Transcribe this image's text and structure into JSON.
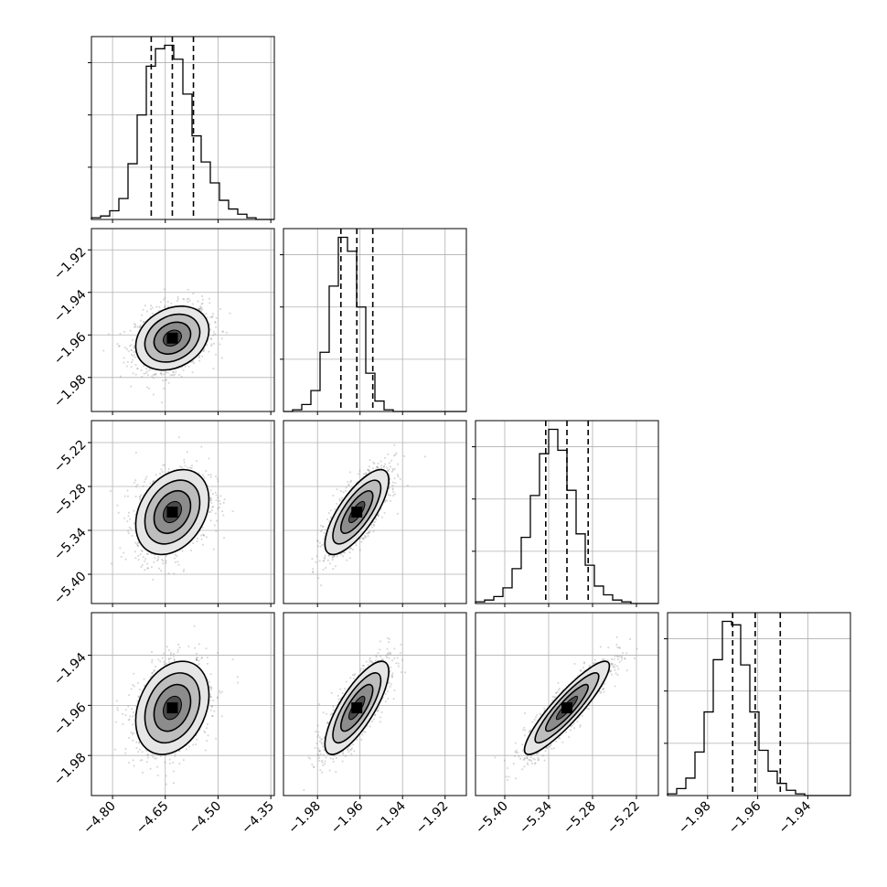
{
  "chart_data": {
    "type": "corner",
    "grid": true,
    "colors": {
      "line": "#000000",
      "grid": "#b0b0b0",
      "scatter": "#8a8a8a",
      "background": "#ffffff"
    },
    "parameters": [
      {
        "xlim": [
          -4.86,
          -4.34
        ],
        "ticks": [
          "-4.80",
          "-4.65",
          "-4.50",
          "-4.35"
        ],
        "tick_values": [
          -4.8,
          -4.65,
          -4.5,
          -4.35
        ],
        "median": -4.63,
        "q16": -4.69,
        "q84": -4.57,
        "std": 0.052
      },
      {
        "xlim": [
          -1.996,
          -1.91
        ],
        "ticks": [
          "-1.98",
          "-1.96",
          "-1.94",
          "-1.92"
        ],
        "tick_values": [
          -1.98,
          -1.96,
          -1.94,
          -1.92
        ],
        "median": -1.9615,
        "q16": -1.969,
        "q84": -1.954,
        "std": 0.0075
      },
      {
        "xlim": [
          -5.44,
          -5.19
        ],
        "ticks": [
          "-5.40",
          "-5.34",
          "-5.28",
          "-5.22"
        ],
        "tick_values": [
          -5.4,
          -5.34,
          -5.28,
          -5.22
        ],
        "median": -5.315,
        "q16": -5.344,
        "q84": -5.286,
        "std": 0.029
      },
      {
        "xlim": [
          -1.996,
          -1.923
        ],
        "ticks": [
          "-1.98",
          "-1.96",
          "-1.94"
        ],
        "tick_values": [
          -1.98,
          -1.96,
          -1.94
        ],
        "median": -1.961,
        "q16": -1.97,
        "q84": -1.951,
        "std": 0.0093
      }
    ],
    "correlations": [
      {
        "i": 1,
        "j": 0,
        "rho": 0.25
      },
      {
        "i": 2,
        "j": 0,
        "rho": 0.3
      },
      {
        "i": 2,
        "j": 1,
        "rho": 0.75
      },
      {
        "i": 3,
        "j": 0,
        "rho": 0.28
      },
      {
        "i": 3,
        "j": 1,
        "rho": 0.78
      },
      {
        "i": 3,
        "j": 2,
        "rho": 0.9
      }
    ],
    "histograms": [
      {
        "bins": 20,
        "counts": [
          1,
          2,
          5,
          12,
          32,
          60,
          88,
          98,
          100,
          92,
          72,
          48,
          33,
          21,
          11,
          6,
          3,
          1,
          0,
          0
        ]
      },
      {
        "bins": 20,
        "counts": [
          0,
          1,
          4,
          12,
          34,
          72,
          100,
          92,
          60,
          22,
          6,
          1,
          0,
          0,
          0,
          0,
          0,
          0,
          0,
          0
        ]
      },
      {
        "bins": 20,
        "counts": [
          1,
          2,
          4,
          9,
          20,
          38,
          62,
          86,
          100,
          88,
          65,
          40,
          22,
          10,
          5,
          2,
          1,
          0,
          0,
          0
        ]
      },
      {
        "bins": 20,
        "counts": [
          1,
          4,
          10,
          25,
          48,
          78,
          100,
          98,
          75,
          48,
          26,
          14,
          7,
          3,
          1,
          0,
          0,
          0,
          0,
          0
        ]
      }
    ]
  }
}
